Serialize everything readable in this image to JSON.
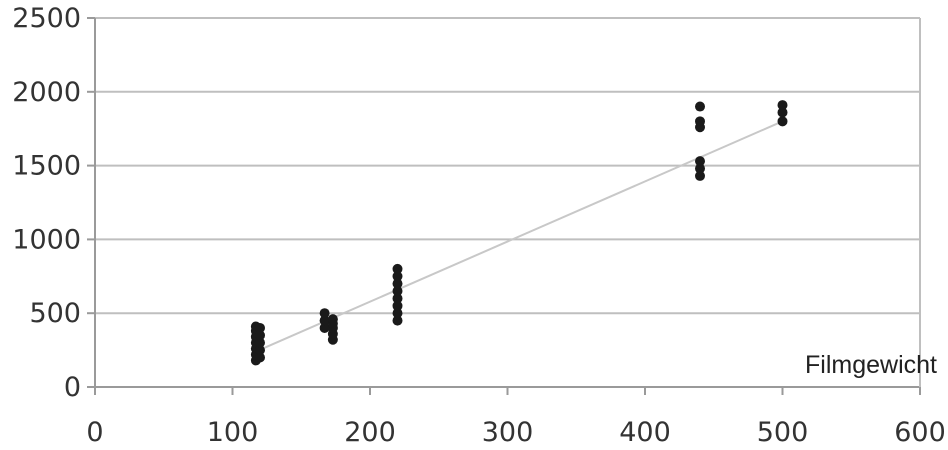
{
  "chart_data": {
    "type": "scatter",
    "title": "",
    "xlabel": "Filmgewicht",
    "ylabel": "",
    "xlim": [
      0,
      600
    ],
    "ylim": [
      0,
      2500
    ],
    "x_ticks": [
      0,
      100,
      200,
      300,
      400,
      500,
      600
    ],
    "y_ticks": [
      0,
      500,
      1000,
      1500,
      2000,
      2500
    ],
    "x_tick_labels": [
      "0",
      "100",
      "200",
      "300",
      "400",
      "500",
      "600"
    ],
    "y_tick_labels": [
      "0",
      "500",
      "1000",
      "1500",
      "2000",
      "2500"
    ],
    "grid": "horizontal",
    "legend": "none",
    "colors": {
      "points": "#1a1a1a",
      "trendline": "#c8c8c8",
      "grid": "#bfbfbf",
      "axis": "#9a9a9a"
    },
    "series": [
      {
        "points": [
          [
            117,
            180
          ],
          [
            117,
            220
          ],
          [
            117,
            260
          ],
          [
            117,
            300
          ],
          [
            117,
            340
          ],
          [
            117,
            380
          ],
          [
            117,
            410
          ],
          [
            120,
            200
          ],
          [
            120,
            250
          ],
          [
            120,
            300
          ],
          [
            120,
            350
          ],
          [
            120,
            400
          ],
          [
            167,
            400
          ],
          [
            167,
            450
          ],
          [
            167,
            500
          ],
          [
            173,
            320
          ],
          [
            173,
            360
          ],
          [
            173,
            400
          ],
          [
            173,
            430
          ],
          [
            173,
            460
          ],
          [
            220,
            450
          ],
          [
            220,
            500
          ],
          [
            220,
            550
          ],
          [
            220,
            600
          ],
          [
            220,
            650
          ],
          [
            220,
            700
          ],
          [
            220,
            750
          ],
          [
            220,
            800
          ],
          [
            440,
            1430
          ],
          [
            440,
            1480
          ],
          [
            440,
            1530
          ],
          [
            440,
            1760
          ],
          [
            440,
            1800
          ],
          [
            440,
            1900
          ],
          [
            500,
            1800
          ],
          [
            500,
            1860
          ],
          [
            500,
            1910
          ]
        ]
      }
    ],
    "trendline": {
      "x": [
        117,
        500
      ],
      "y": [
        240,
        1800
      ]
    }
  }
}
